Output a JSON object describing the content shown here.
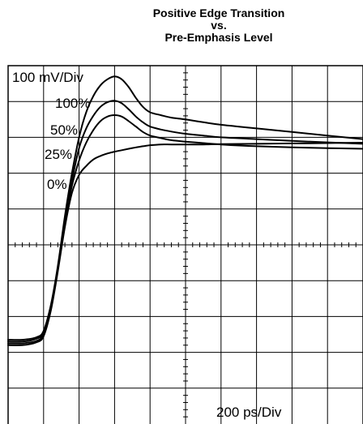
{
  "chart_data": {
    "type": "line",
    "title_lines": [
      "Positive Edge Transition",
      "vs.",
      "Pre-Emphasis Level"
    ],
    "vertical_scale_label": "100 mV/Div",
    "horizontal_scale_label": "200 ps/Div",
    "grid": true,
    "divisions": {
      "x": 10,
      "y": 10
    },
    "xlim": [
      0,
      10
    ],
    "ylim": [
      0,
      10
    ],
    "series": [
      {
        "name": "100%",
        "x": [
          0,
          0.4,
          0.8,
          1.0,
          1.2,
          1.4,
          1.6,
          1.8,
          2.0,
          2.2,
          2.4,
          2.6,
          2.8,
          3.0,
          3.2,
          3.4,
          3.6,
          3.8,
          4.0,
          4.3,
          4.6,
          5.0,
          5.5,
          6.0,
          7.0,
          8.0,
          9.0,
          10.0
        ],
        "y": [
          2.35,
          2.35,
          2.42,
          2.6,
          3.3,
          4.4,
          5.8,
          7.0,
          8.0,
          8.7,
          9.15,
          9.45,
          9.62,
          9.7,
          9.62,
          9.4,
          9.1,
          8.85,
          8.7,
          8.62,
          8.55,
          8.5,
          8.42,
          8.35,
          8.25,
          8.15,
          8.05,
          7.95
        ]
      },
      {
        "name": "50%",
        "x": [
          0,
          0.4,
          0.8,
          1.0,
          1.2,
          1.4,
          1.6,
          1.8,
          2.0,
          2.2,
          2.4,
          2.6,
          2.8,
          3.0,
          3.2,
          3.4,
          3.6,
          3.8,
          4.0,
          4.3,
          4.6,
          5.0,
          5.5,
          6.0,
          7.0,
          8.0,
          9.0,
          10.0
        ],
        "y": [
          2.3,
          2.3,
          2.38,
          2.55,
          3.25,
          4.35,
          5.7,
          6.8,
          7.7,
          8.25,
          8.6,
          8.85,
          8.98,
          9.02,
          8.95,
          8.78,
          8.58,
          8.42,
          8.3,
          8.22,
          8.16,
          8.1,
          8.05,
          8.0,
          7.95,
          7.9,
          7.86,
          7.82
        ]
      },
      {
        "name": "25%",
        "x": [
          0,
          0.4,
          0.8,
          1.0,
          1.2,
          1.4,
          1.6,
          1.8,
          2.0,
          2.2,
          2.4,
          2.6,
          2.8,
          3.0,
          3.2,
          3.4,
          3.6,
          3.8,
          4.0,
          4.3,
          4.6,
          5.0,
          5.5,
          6.0,
          7.0,
          8.0,
          9.0,
          10.0
        ],
        "y": [
          2.25,
          2.25,
          2.32,
          2.5,
          3.2,
          4.3,
          5.6,
          6.65,
          7.35,
          7.85,
          8.2,
          8.45,
          8.58,
          8.62,
          8.58,
          8.45,
          8.3,
          8.15,
          8.05,
          7.98,
          7.92,
          7.88,
          7.84,
          7.8,
          7.75,
          7.72,
          7.7,
          7.68
        ]
      },
      {
        "name": "0%",
        "x": [
          0,
          0.4,
          0.8,
          1.0,
          1.2,
          1.4,
          1.6,
          1.8,
          2.0,
          2.2,
          2.4,
          2.6,
          2.8,
          3.0,
          3.2,
          3.4,
          3.6,
          3.8,
          4.0,
          4.3,
          4.6,
          5.0,
          5.5,
          6.0,
          7.0,
          8.0,
          9.0,
          10.0
        ],
        "y": [
          2.2,
          2.2,
          2.28,
          2.45,
          3.15,
          4.25,
          5.5,
          6.45,
          6.95,
          7.2,
          7.38,
          7.48,
          7.55,
          7.6,
          7.64,
          7.68,
          7.72,
          7.75,
          7.78,
          7.8,
          7.8,
          7.8,
          7.8,
          7.81,
          7.82,
          7.83,
          7.84,
          7.85
        ]
      }
    ]
  }
}
